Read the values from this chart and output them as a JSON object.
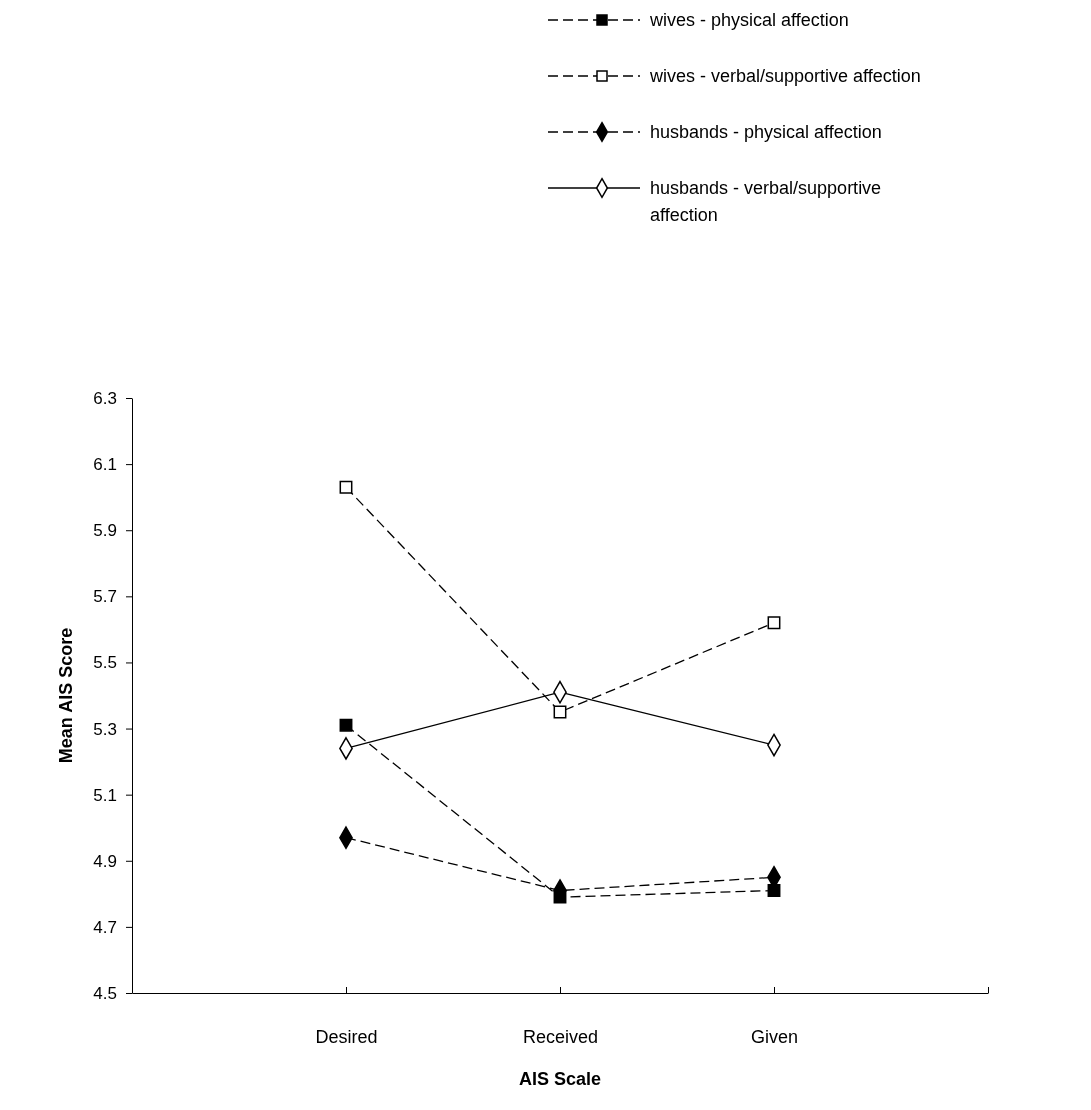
{
  "chart_data": {
    "type": "line",
    "xlabel": "AIS Scale",
    "ylabel": "Mean AIS Score",
    "categories": [
      "Desired",
      "Received",
      "Given"
    ],
    "ylim": [
      4.5,
      6.3
    ],
    "yticks": [
      4.5,
      4.7,
      4.9,
      5.1,
      5.3,
      5.5,
      5.7,
      5.9,
      6.1,
      6.3
    ],
    "grid": false,
    "legend": "top right",
    "series": [
      {
        "name": "wives - physical affection",
        "color": "#000000",
        "marker": "square",
        "line_style": "dashed",
        "values": [
          5.31,
          4.79,
          4.81
        ]
      },
      {
        "name": "wives -  verbal/supportive affection",
        "color": "#000000",
        "marker": "square",
        "colors": [
          "#ffffff",
          "#ffffff",
          "#ffffff"
        ],
        "line_style": "dashed",
        "values": [
          6.03,
          5.35,
          5.62
        ]
      },
      {
        "name": "husbands - physical affection",
        "color": "#000000",
        "marker": "diamond",
        "line_style": "dashed",
        "values": [
          4.97,
          4.81,
          4.85
        ]
      },
      {
        "name": "husbands - verbal/supportive affection",
        "color": "#000000",
        "marker": "diamond",
        "colors": [
          "#ffffff",
          "#ffffff",
          "#ffffff"
        ],
        "line_style": "solid",
        "values": [
          5.24,
          5.41,
          5.25
        ]
      }
    ]
  }
}
